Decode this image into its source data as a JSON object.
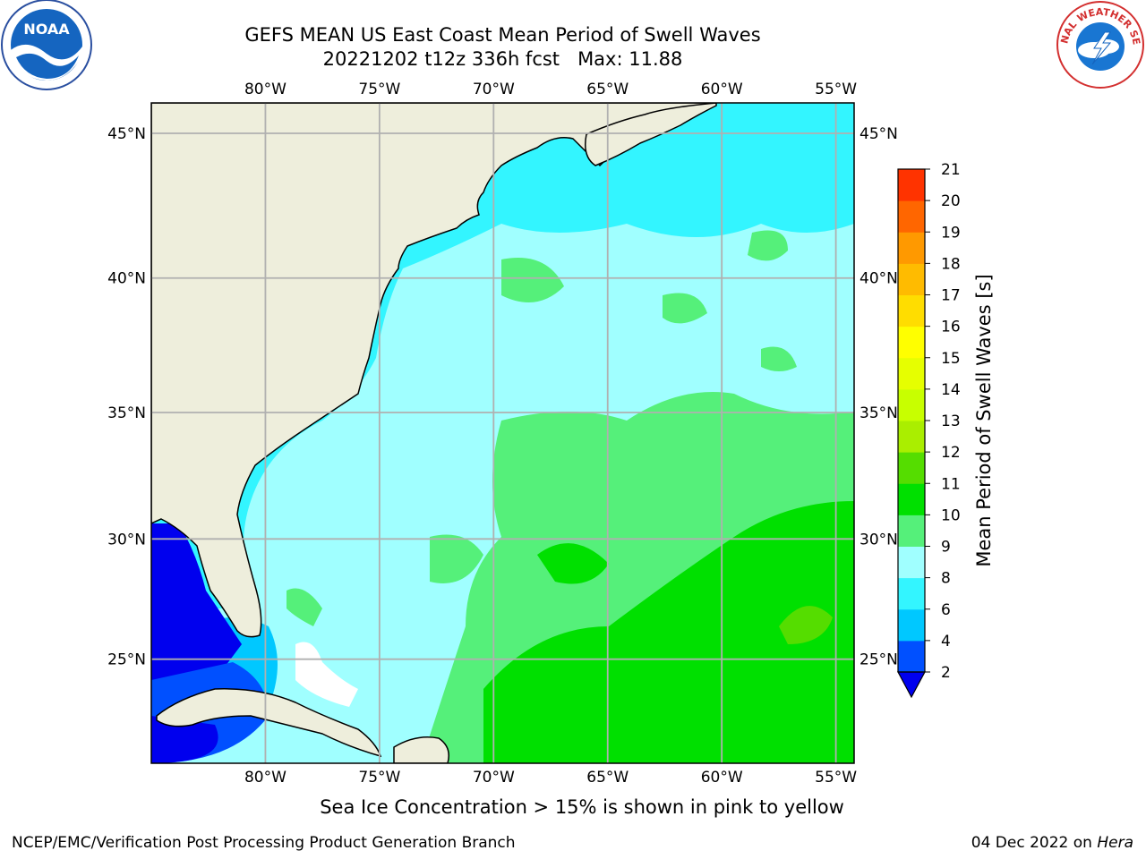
{
  "header": {
    "title_line1": "GEFS MEAN US East Coast Mean Period of Swell Waves",
    "title_line2": "20221202 t12z 336h fcst   Max: 11.88",
    "left_logo": "noaa-logo",
    "right_logo": "national-weather-service-logo",
    "nws_logo_text": "NATIONAL WEATHER SERVICE",
    "noaa_logo_text": "NOAA"
  },
  "map": {
    "lon_labels": [
      "80°W",
      "75°W",
      "70°W",
      "65°W",
      "60°W",
      "55°W"
    ],
    "lat_labels": [
      "45°N",
      "40°N",
      "35°N",
      "30°N",
      "25°N"
    ],
    "lon_range": [
      -85,
      -54.2
    ],
    "lat_range": [
      20.5,
      46
    ],
    "land_color": "#eeeedc",
    "grid_color": "#b0b0b0"
  },
  "colorbar": {
    "title": "Mean Period of Swell Waves [s]",
    "levels": [
      "2",
      "4",
      "6",
      "8",
      "9",
      "10",
      "11",
      "12",
      "13",
      "14",
      "15",
      "16",
      "17",
      "18",
      "19",
      "20",
      "21"
    ],
    "colors": [
      "#0050ff",
      "#00c8ff",
      "#33f5ff",
      "#a0ffff",
      "#55f07a",
      "#00e000",
      "#55dd00",
      "#aaee00",
      "#c8ff00",
      "#e6ff00",
      "#ffff00",
      "#ffdd00",
      "#ffbb00",
      "#ff9900",
      "#ff6600",
      "#ff3300"
    ],
    "extend_color": "#0000ee"
  },
  "subtitle": "Sea Ice Concentration > 15% is shown in pink to yellow",
  "footer": {
    "left": "NCEP/EMC/Verification Post Processing Product Generation Branch",
    "right_date": "04 Dec 2022 on ",
    "right_machine": "Hera"
  }
}
